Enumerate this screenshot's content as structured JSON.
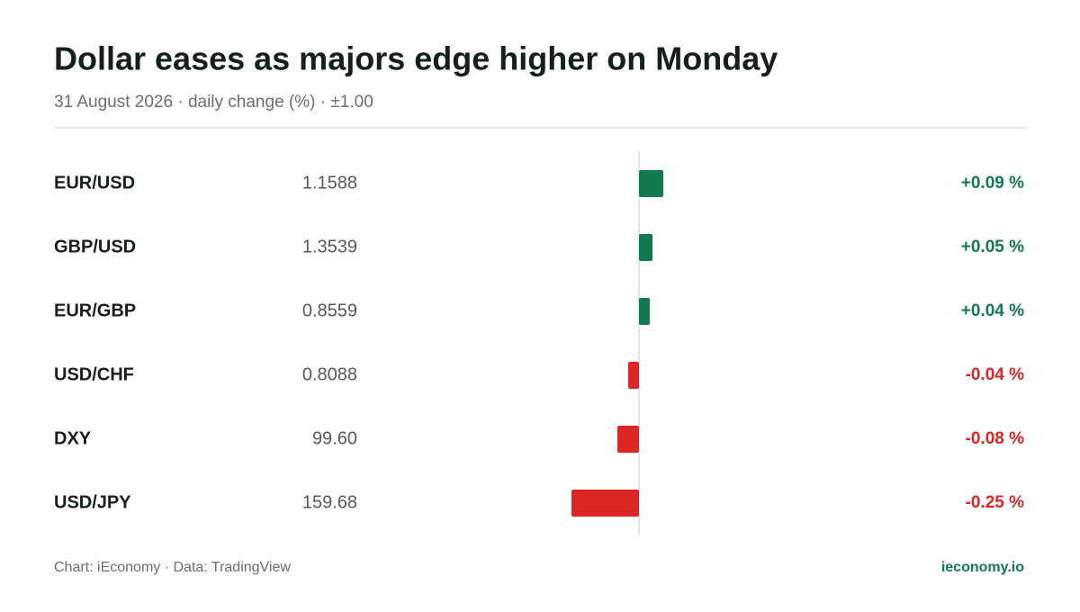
{
  "chart_data": {
    "type": "bar",
    "orientation": "horizontal",
    "title": "Dollar eases as majors edge higher on Monday",
    "subtitle": "31 August 2026 · daily change (%) · ±1.00",
    "categories": [
      "EUR/USD",
      "GBP/USD",
      "EUR/GBP",
      "USD/CHF",
      "DXY",
      "USD/JPY"
    ],
    "prices": [
      "1.1588",
      "1.3539",
      "0.8559",
      "0.8088",
      "99.60",
      "159.68"
    ],
    "values": [
      0.09,
      0.05,
      0.04,
      -0.04,
      -0.08,
      -0.25
    ],
    "value_labels": [
      "+0.09 %",
      "+0.05 %",
      "+0.04 %",
      "-0.04 %",
      "-0.08 %",
      "-0.25 %"
    ],
    "xlim": [
      -1,
      1
    ],
    "positive_color": "#127a4f",
    "negative_color": "#dc2626",
    "source": "Chart: iEconomy · Data: TradingView",
    "brand": "ieconomy.io"
  }
}
